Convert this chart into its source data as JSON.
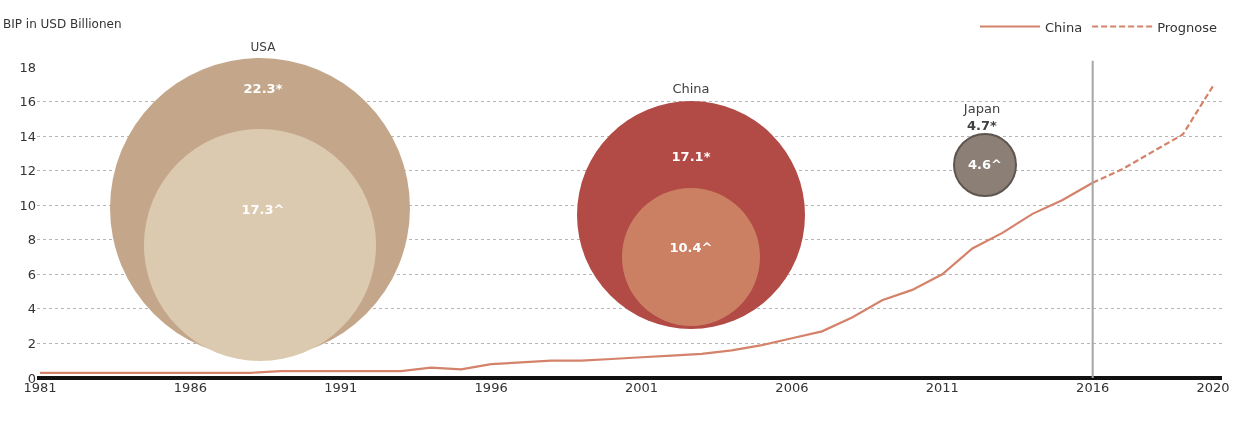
{
  "chart_data": {
    "type": "line",
    "ylabel": "BIP in USD Billionen",
    "xlim": [
      1980.9,
      2020.3
    ],
    "ylim": [
      0,
      18
    ],
    "xticks": [
      1981,
      1986,
      1991,
      1996,
      2001,
      2006,
      2011,
      2016,
      2020
    ],
    "yticks": [
      0,
      2,
      4,
      6,
      8,
      10,
      12,
      14,
      16,
      18
    ],
    "grid": "y",
    "legend": "top right",
    "series": [
      {
        "name": "China",
        "color": "#d4826a",
        "line_style": "solid",
        "x": [
          1981,
          1982,
          1983,
          1984,
          1985,
          1986,
          1987,
          1988,
          1989,
          1990,
          1991,
          1992,
          1993,
          1994,
          1995,
          1996,
          1997,
          1998,
          1999,
          2000,
          2001,
          2002,
          2003,
          2004,
          2005,
          2006,
          2007,
          2008,
          2009,
          2010,
          2011,
          2012,
          2013,
          2014,
          2015,
          2016
        ],
        "values": [
          0.3,
          0.3,
          0.3,
          0.3,
          0.3,
          0.3,
          0.3,
          0.3,
          0.4,
          0.4,
          0.4,
          0.4,
          0.4,
          0.6,
          0.5,
          0.8,
          0.9,
          1.0,
          1.0,
          1.1,
          1.2,
          1.3,
          1.4,
          1.6,
          1.9,
          2.3,
          2.7,
          3.5,
          4.5,
          5.1,
          6.0,
          7.5,
          8.4,
          9.5,
          10.3,
          11.3
        ]
      },
      {
        "name": "Prognose",
        "color": "#d4826a",
        "line_style": "dashed",
        "x": [
          2016,
          2017,
          2018,
          2019,
          2020
        ],
        "values": [
          11.3,
          12.1,
          13.1,
          14.1,
          16.9
        ]
      }
    ],
    "annotations": [
      "USA",
      "22.3*",
      "17.3^",
      "China",
      "17.1*",
      "10.4^",
      "Japan",
      "4.7*",
      "4.6^"
    ],
    "ref_lines": [
      {
        "axis": "x",
        "value": 2016,
        "color": "#a6a6a6"
      }
    ]
  }
}
